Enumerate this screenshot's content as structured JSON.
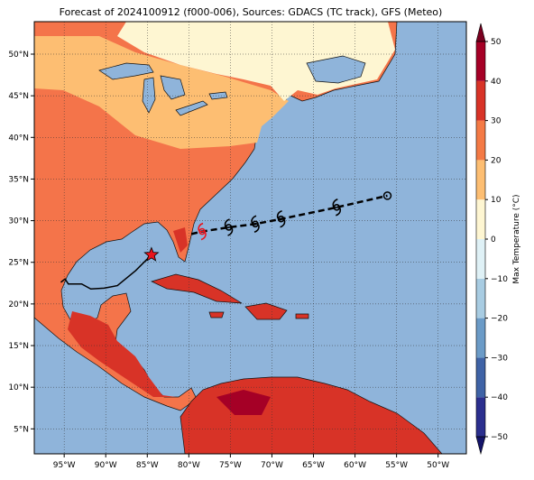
{
  "map": {
    "title": "Forecast of 2024100912 (f000-006), Sources: GDACS (TC track), GFS (Meteo)",
    "xlim": [
      -98.6,
      -46.6
    ],
    "ylim": [
      2.0,
      53.9
    ],
    "xticks": [
      {
        "value": -95,
        "label": "95°W"
      },
      {
        "value": -90,
        "label": "90°W"
      },
      {
        "value": -85,
        "label": "85°W"
      },
      {
        "value": -80,
        "label": "80°W"
      },
      {
        "value": -75,
        "label": "75°W"
      },
      {
        "value": -70,
        "label": "70°W"
      },
      {
        "value": -65,
        "label": "65°W"
      },
      {
        "value": -60,
        "label": "60°W"
      },
      {
        "value": -55,
        "label": "55°W"
      },
      {
        "value": -50,
        "label": "50°W"
      }
    ],
    "yticks": [
      {
        "value": 5,
        "label": "5°N"
      },
      {
        "value": 10,
        "label": "10°N"
      },
      {
        "value": 15,
        "label": "15°N"
      },
      {
        "value": 20,
        "label": "20°N"
      },
      {
        "value": 25,
        "label": "25°N"
      },
      {
        "value": 30,
        "label": "30°N"
      },
      {
        "value": 35,
        "label": "35°N"
      },
      {
        "value": 40,
        "label": "40°N"
      },
      {
        "value": 45,
        "label": "45°N"
      },
      {
        "value": 50,
        "label": "50°N"
      }
    ],
    "past_track": {
      "lon": [
        -95.4,
        -94.9,
        -94.5,
        -92.9,
        -91.8,
        -90.2,
        -88.6,
        -86.4,
        -84.5
      ],
      "lat": [
        22.6,
        23.0,
        22.4,
        22.4,
        21.8,
        21.9,
        22.2,
        24.0,
        25.9
      ]
    },
    "forecast_track": {
      "lon": [
        -79.7,
        -78.4,
        -75.2,
        -72.0,
        -68.9,
        -62.2,
        -56.1
      ],
      "lat": [
        28.4,
        28.7,
        29.2,
        29.6,
        30.2,
        31.6,
        33.0
      ]
    },
    "colorbar": {
      "label": "Max Temperature (°C)",
      "ticks": [
        {
          "value": -50,
          "label": "−50"
        },
        {
          "value": -40,
          "label": "−40"
        },
        {
          "value": -30,
          "label": "−30"
        },
        {
          "value": -20,
          "label": "−20"
        },
        {
          "value": -10,
          "label": "−10"
        },
        0,
        10,
        20,
        30,
        40,
        50
      ],
      "colors": [
        "#2b2f8e",
        "#3f63a6",
        "#6b9bc7",
        "#a8cce2",
        "#dff1f6",
        "#fef6d2",
        "#fdbe72",
        "#f47a45",
        "#d83327",
        "#a50026"
      ],
      "under_color": "#14146a",
      "over_color": "#7a0020"
    }
  }
}
